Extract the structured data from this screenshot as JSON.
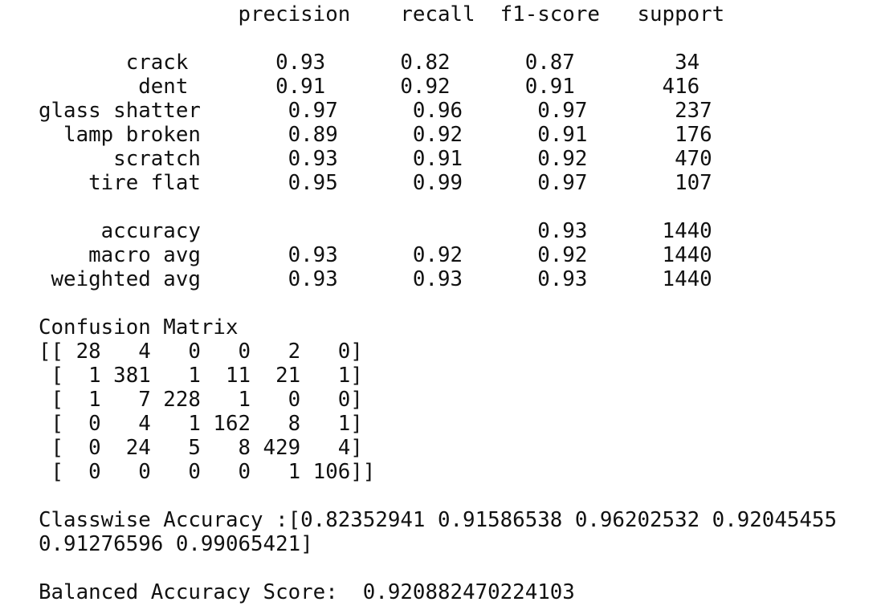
{
  "output": {
    "lines": [
      "                precision    recall  f1-score   support",
      "",
      "       crack       0.93      0.82      0.87        34",
      "        dent       0.91      0.92      0.91       416",
      "glass shatter       0.97      0.96      0.97       237",
      "  lamp broken       0.89      0.92      0.91       176",
      "      scratch       0.93      0.91      0.92       470",
      "    tire flat       0.95      0.99      0.97       107",
      "",
      "     accuracy                           0.93      1440",
      "    macro avg       0.93      0.92      0.92      1440",
      " weighted avg       0.93      0.93      0.93      1440",
      "",
      "Confusion Matrix",
      "[[ 28   4   0   0   2   0]",
      " [  1 381   1  11  21   1]",
      " [  1   7 228   1   0   0]",
      " [  0   4   1 162   8   1]",
      " [  0  24   5   8 429   4]",
      " [  0   0   0   0   1 106]]",
      "",
      "Classwise Accuracy :[0.82352941 0.91586538 0.96202532 0.92045455",
      "0.91276596 0.99065421]",
      "",
      "Balanced Accuracy Score:  0.920882470224103"
    ]
  }
}
